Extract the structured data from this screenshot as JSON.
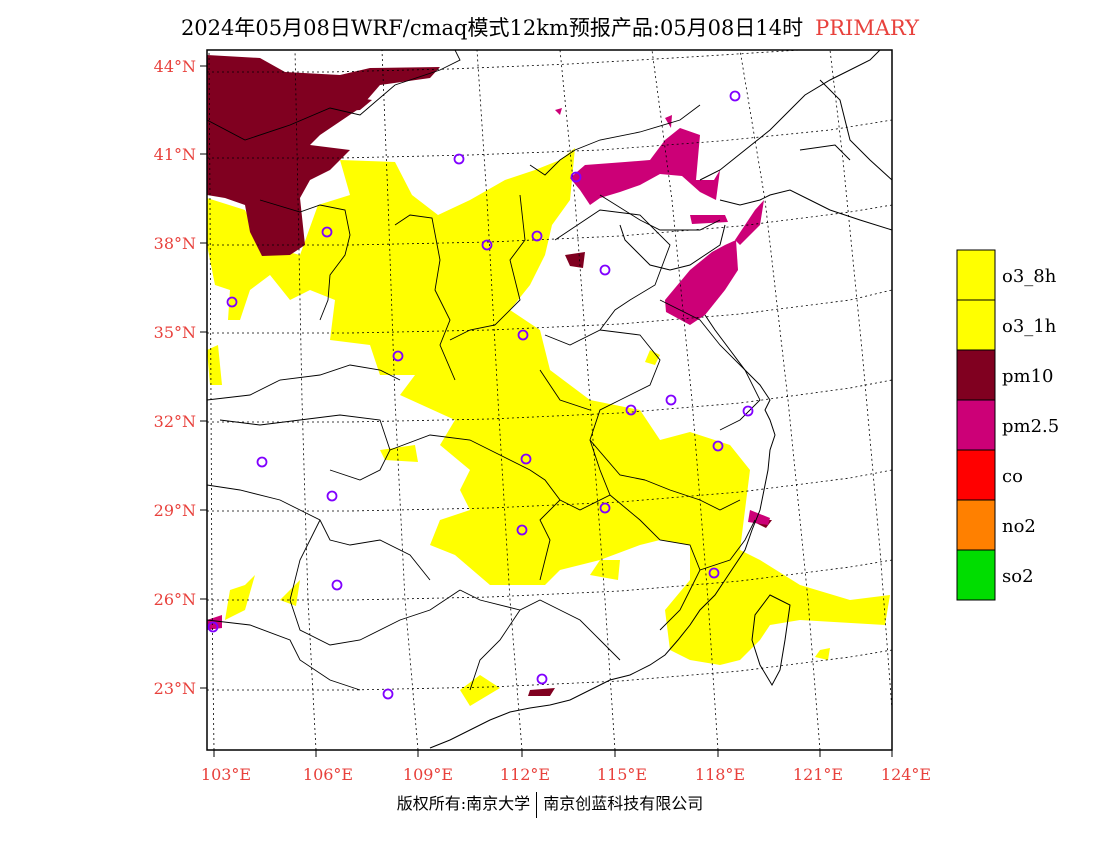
{
  "header": {
    "title": "2024年05月08日WRF/cmaq模式12km预报产品:05月08日14时",
    "tag": "PRIMARY"
  },
  "footer": {
    "left": "版权所有:南京大学",
    "right": "南京创蓝科技有限公司"
  },
  "colors": {
    "axis_label": "#e8413c",
    "o3_8h": "#ffff00",
    "o3_1h": "#ffff00",
    "pm10": "#800020",
    "pm2_5": "#cc0077",
    "co": "#ff0000",
    "no2": "#ff8000",
    "so2": "#00dd00",
    "station_marker": "#8000ff"
  },
  "map": {
    "lat_labels": [
      "44°N",
      "41°N",
      "38°N",
      "35°N",
      "32°N",
      "29°N",
      "26°N",
      "23°N"
    ],
    "lon_labels": [
      "103°E",
      "106°E",
      "109°E",
      "112°E",
      "115°E",
      "118°E",
      "121°E",
      "124°E"
    ]
  },
  "legend": {
    "items": [
      {
        "label": "o3_8h",
        "color": "#ffff00"
      },
      {
        "label": "o3_1h",
        "color": "#ffff00"
      },
      {
        "label": "pm10",
        "color": "#800020"
      },
      {
        "label": "pm2.5",
        "color": "#cc0077"
      },
      {
        "label": "co",
        "color": "#ff0000"
      },
      {
        "label": "no2",
        "color": "#ff8000"
      },
      {
        "label": "so2",
        "color": "#00dd00"
      }
    ]
  }
}
